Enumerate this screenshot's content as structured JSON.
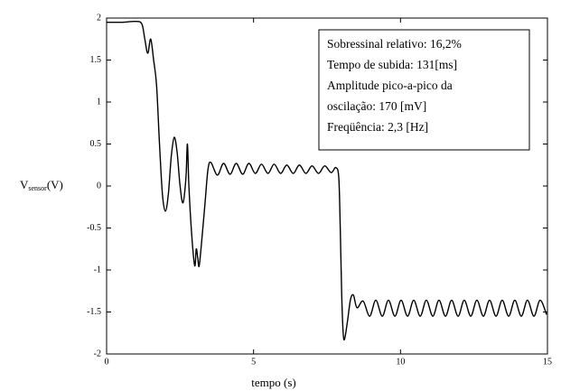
{
  "chart_data": {
    "type": "line",
    "xlabel": "tempo (s)",
    "ylabel": {
      "main": "V",
      "sub": "sensor",
      "unit": "(V)"
    },
    "annotation": [
      "Sobressinal relativo: 16,2%",
      "Tempo de subida: 131[ms]",
      "Amplitude pico-a-pico da",
      "oscilação: 170 [mV]",
      "Freqüência: 2,3 [Hz]"
    ],
    "xlim": [
      0,
      15
    ],
    "ylim": [
      -2,
      2
    ],
    "xticks": [
      0,
      5,
      10,
      15
    ],
    "yticks": [
      -2,
      -1.5,
      -1,
      -0.5,
      0,
      0.5,
      1,
      1.5,
      2
    ],
    "grid": false,
    "series": [
      {
        "color": "#000000",
        "x": [
          0,
          0.5,
          1.0,
          1.2,
          1.3,
          1.4,
          1.5,
          1.6,
          1.7,
          1.8,
          1.9,
          2.0,
          2.1,
          2.2,
          2.3,
          2.4,
          2.5,
          2.6,
          2.7,
          2.75,
          2.8,
          2.9,
          3.0,
          3.05,
          3.1,
          3.15,
          3.25,
          3.35,
          3.45,
          3.55,
          3.77,
          3.98,
          4.2,
          4.41,
          4.63,
          4.84,
          5.06,
          5.27,
          5.49,
          5.7,
          5.92,
          6.13,
          6.35,
          6.56,
          6.78,
          6.99,
          7.21,
          7.42,
          7.64,
          7.8,
          7.9,
          7.95,
          8.0,
          8.05,
          8.1,
          8.2,
          8.3,
          8.4,
          8.52,
          8.73,
          8.95,
          9.16,
          9.38,
          9.59,
          9.81,
          10.02,
          10.24,
          10.45,
          10.67,
          10.88,
          11.1,
          11.31,
          11.53,
          11.74,
          11.96,
          12.17,
          12.39,
          12.6,
          12.82,
          13.03,
          13.25,
          13.46,
          13.68,
          13.89,
          14.11,
          14.32,
          14.54,
          14.75,
          14.97
        ],
        "values": [
          1.95,
          1.95,
          1.96,
          1.93,
          1.75,
          1.58,
          1.75,
          1.5,
          1.2,
          0.5,
          -0.1,
          -0.3,
          -0.1,
          0.35,
          0.58,
          0.4,
          0.0,
          -0.2,
          0.1,
          0.5,
          0.0,
          -0.6,
          -0.95,
          -0.75,
          -0.85,
          -0.95,
          -0.6,
          -0.2,
          0.2,
          0.28,
          0.13,
          0.27,
          0.14,
          0.27,
          0.14,
          0.27,
          0.15,
          0.26,
          0.15,
          0.26,
          0.15,
          0.25,
          0.15,
          0.25,
          0.15,
          0.24,
          0.15,
          0.24,
          0.16,
          0.22,
          0.1,
          -0.5,
          -1.3,
          -1.75,
          -1.82,
          -1.6,
          -1.35,
          -1.3,
          -1.45,
          -1.37,
          -1.55,
          -1.36,
          -1.55,
          -1.36,
          -1.55,
          -1.36,
          -1.55,
          -1.36,
          -1.55,
          -1.36,
          -1.55,
          -1.36,
          -1.55,
          -1.36,
          -1.55,
          -1.36,
          -1.55,
          -1.36,
          -1.55,
          -1.36,
          -1.55,
          -1.36,
          -1.55,
          -1.36,
          -1.55,
          -1.36,
          -1.55,
          -1.36,
          -1.53
        ]
      }
    ]
  }
}
